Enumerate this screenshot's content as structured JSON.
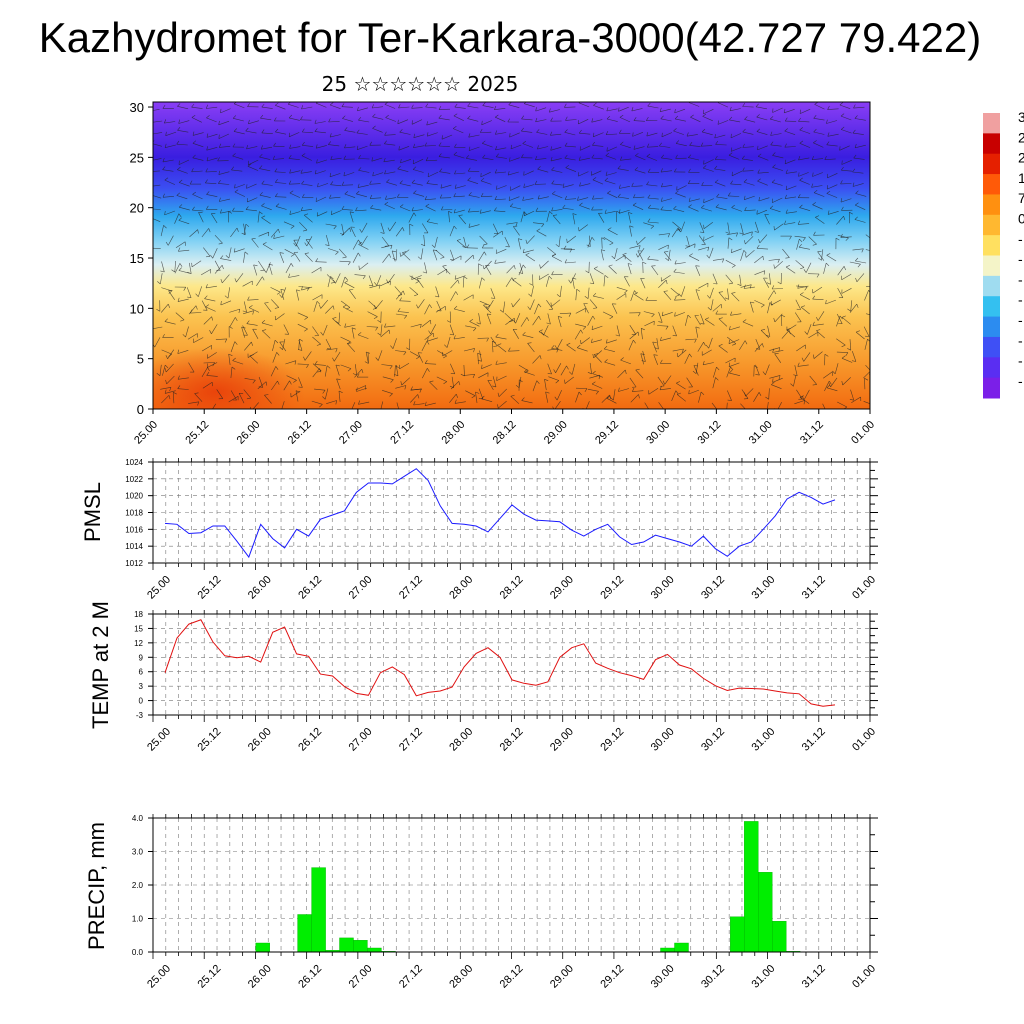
{
  "title": "Kazhydromet for Ter-Karkara-3000(42.727 79.422)",
  "subtitle": "25 ☆☆☆☆☆☆ 2025",
  "colors": {
    "pmsl_line": "#1a1aff",
    "temp_line": "#e01010",
    "precip_bar": "#00ee00",
    "axis": "#000000",
    "grid": "#777777"
  },
  "chart_data": [
    {
      "type": "heatmap",
      "name": "vertical-cross-section",
      "x_tick_labels": [
        "25.00",
        "25.12",
        "26.00",
        "26.12",
        "27.00",
        "27.12",
        "28.00",
        "28.12",
        "29.00",
        "29.12",
        "30.00",
        "30.12",
        "31.00",
        "31.12",
        "01.00"
      ],
      "y_tick_labels": [
        "0",
        "5",
        "10",
        "15",
        "20",
        "25",
        "30"
      ],
      "ylim": [
        0,
        30.5
      ],
      "colorbar_labels": [
        "3",
        "2",
        "2",
        "1",
        "7",
        "0",
        "-",
        "-",
        "-",
        "-",
        "-",
        "-",
        "-",
        "-"
      ],
      "colorbar_colors": [
        "#7b1fe8",
        "#5a2ef2",
        "#3f50f5",
        "#2c8cf0",
        "#34c0f0",
        "#9fdcf0",
        "#f4f4c8",
        "#ffe060",
        "#ffb830",
        "#ff9010",
        "#ff5a08",
        "#e52000",
        "#c80000",
        "#f0a0a0"
      ],
      "wind_barbs": true
    },
    {
      "type": "line",
      "name": "pmsl",
      "ylabel": "PMSL",
      "x_tick_labels": [
        "25.00",
        "25.12",
        "26.00",
        "26.12",
        "27.00",
        "27.12",
        "28.00",
        "28.12",
        "29.00",
        "29.12",
        "30.00",
        "30.12",
        "31.00",
        "31.12",
        "01.00"
      ],
      "ylim": [
        1012,
        1024
      ],
      "y_ticks": [
        1012,
        1014,
        1016,
        1018,
        1020,
        1022,
        1024
      ],
      "x_range_hours": [
        0,
        144
      ],
      "series": [
        {
          "values": [
            1016.7,
            1016.6,
            1015.5,
            1015.6,
            1016.4,
            1016.4,
            1014.6,
            1012.7,
            1016.6,
            1014.9,
            1013.8,
            1016.0,
            1015.2,
            1017.2,
            1017.7,
            1018.2,
            1020.4,
            1021.5,
            1021.5,
            1021.4,
            1022.3,
            1023.2,
            1021.8,
            1018.8,
            1016.7,
            1016.6,
            1016.4,
            1015.7,
            1017.3,
            1018.9,
            1017.8,
            1017.1,
            1017.0,
            1016.9,
            1015.9,
            1015.2,
            1016.0,
            1016.6,
            1015.1,
            1014.2,
            1014.5,
            1015.3,
            1014.9,
            1014.5,
            1014.0,
            1015.2,
            1013.7,
            1012.8,
            1014.0,
            1014.5,
            1016.0,
            1017.6,
            1019.6,
            1020.4,
            1019.8,
            1019.0,
            1019.5
          ]
        }
      ]
    },
    {
      "type": "line",
      "name": "temperature",
      "ylabel": "TEMP at 2 M",
      "x_tick_labels": [
        "25.00",
        "25.12",
        "26.00",
        "26.12",
        "27.00",
        "27.12",
        "28.00",
        "28.12",
        "29.00",
        "29.12",
        "30.00",
        "30.12",
        "31.00",
        "31.12",
        "01.00"
      ],
      "ylim": [
        -3,
        18
      ],
      "y_ticks": [
        -3,
        0,
        3,
        6,
        9,
        12,
        15,
        18
      ],
      "x_range_hours": [
        0,
        144
      ],
      "series": [
        {
          "values": [
            5.8,
            13.0,
            15.9,
            16.8,
            12.2,
            9.3,
            8.9,
            9.2,
            8.0,
            14.2,
            15.3,
            9.7,
            9.2,
            5.5,
            5.1,
            2.9,
            1.5,
            1.1,
            5.8,
            7.0,
            5.4,
            1.0,
            1.7,
            2.0,
            2.8,
            7.0,
            9.8,
            11.0,
            9.0,
            4.3,
            3.6,
            3.2,
            3.9,
            9.0,
            11.0,
            11.8,
            7.8,
            6.7,
            5.8,
            5.2,
            4.4,
            8.5,
            9.6,
            7.4,
            6.6,
            4.6,
            3.1,
            2.1,
            2.6,
            2.5,
            2.4,
            2.0,
            1.6,
            1.4,
            -0.7,
            -1.2,
            -0.9
          ]
        }
      ]
    },
    {
      "type": "bar",
      "name": "precipitation",
      "ylabel": "PRECIP, mm",
      "x_tick_labels": [
        "25.00",
        "25.12",
        "26.00",
        "26.12",
        "27.00",
        "27.12",
        "28.00",
        "28.12",
        "29.00",
        "29.12",
        "30.00",
        "30.12",
        "31.00",
        "31.12",
        "01.00"
      ],
      "ylim": [
        0,
        4.0
      ],
      "y_tick_labels": [
        "0.0",
        "1.0",
        "2.0",
        "3.0",
        "4.0"
      ],
      "x_range_hours": [
        0,
        144
      ],
      "bars": [
        {
          "hour": 21,
          "value": 0.27
        },
        {
          "hour": 30,
          "value": 1.12
        },
        {
          "hour": 33,
          "value": 2.52
        },
        {
          "hour": 36,
          "value": 0.05
        },
        {
          "hour": 39,
          "value": 0.42
        },
        {
          "hour": 42,
          "value": 0.35
        },
        {
          "hour": 45,
          "value": 0.12
        },
        {
          "hour": 48,
          "value": 0.02
        },
        {
          "hour": 108,
          "value": 0.12
        },
        {
          "hour": 111,
          "value": 0.27
        },
        {
          "hour": 123,
          "value": 1.05
        },
        {
          "hour": 126,
          "value": 3.9
        },
        {
          "hour": 129,
          "value": 2.38
        },
        {
          "hour": 132,
          "value": 0.92
        },
        {
          "hour": 135,
          "value": 0.02
        }
      ]
    }
  ]
}
